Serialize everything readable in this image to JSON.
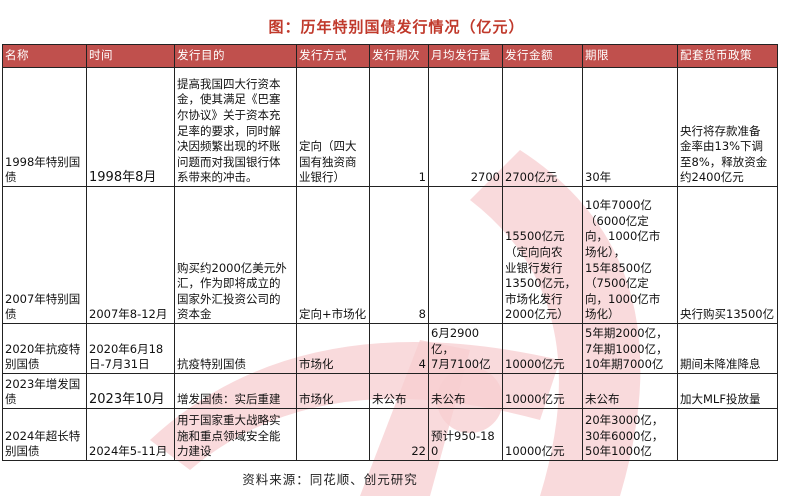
{
  "title": "图：历年特别国债发行情况（亿元）",
  "colors": {
    "header_bg": "#c0504d",
    "title": "#c0392b",
    "watermark": "#f6c9cb"
  },
  "table": {
    "headers": [
      "名称",
      "时间",
      "发行目的",
      "发行方式",
      "发行期次",
      "月均发行量",
      "发行金额",
      "期限",
      "配套货币政策"
    ],
    "rows": [
      [
        "1998年特别国\n债",
        "1998年8月",
        "提高我国四大行资本\n金，使其满足《巴塞\n尔协议》关于资本充\n足率的要求，同时解\n决因频繁出现的坏账\n问题而对我国银行体\n系带来的冲击。",
        "定向（四大\n国有独资商\n业银行）",
        "1",
        "2700",
        "2700亿元",
        "30年",
        "央行将存款准备\n金率由13%下调\n至8%，释放资金\n约2400亿元"
      ],
      [
        "2007年特别国\n债",
        "2007年8-12月",
        "购买约2000亿美元外\n汇，作为即将成立的\n国家外汇投资公司的\n资本金",
        "定向+市场化",
        "8",
        "",
        "15500亿元\n（定向向农\n业银行发行\n13500亿元，\n市场化发行\n2000亿元）",
        "10年7000亿\n（6000亿定\n向，1000亿市\n场化），\n15年8500亿\n（7500亿定\n向，1000亿市\n场化）",
        "央行购买13500亿"
      ],
      [
        "2020年抗疫特\n别国债",
        "2020年6月18\n日-7月31日",
        "抗疫特别国债",
        "市场化",
        "4",
        "6月2900\n亿，\n7月7100亿",
        "10000亿元",
        "5年期2000亿，\n7年期1000亿，\n10年期7000亿",
        "期间未降准降息"
      ],
      [
        "2023年增发国\n债",
        "2023年10月",
        "增发国债：实后重建",
        "市场化",
        "未公布",
        "未公布",
        "10000亿元",
        "未公布",
        "加大MLF投放量"
      ],
      [
        "2024年超长特\n别国债",
        "2024年5-11月",
        "用于国家重大战略实\n施和重点领域安全能\n力建设",
        "",
        "22",
        "预计950-180",
        "10000亿元",
        "20年3000亿，\n30年6000亿，\n50年1000亿",
        ""
      ]
    ]
  },
  "source": "资料来源：同花顺、创元研究"
}
